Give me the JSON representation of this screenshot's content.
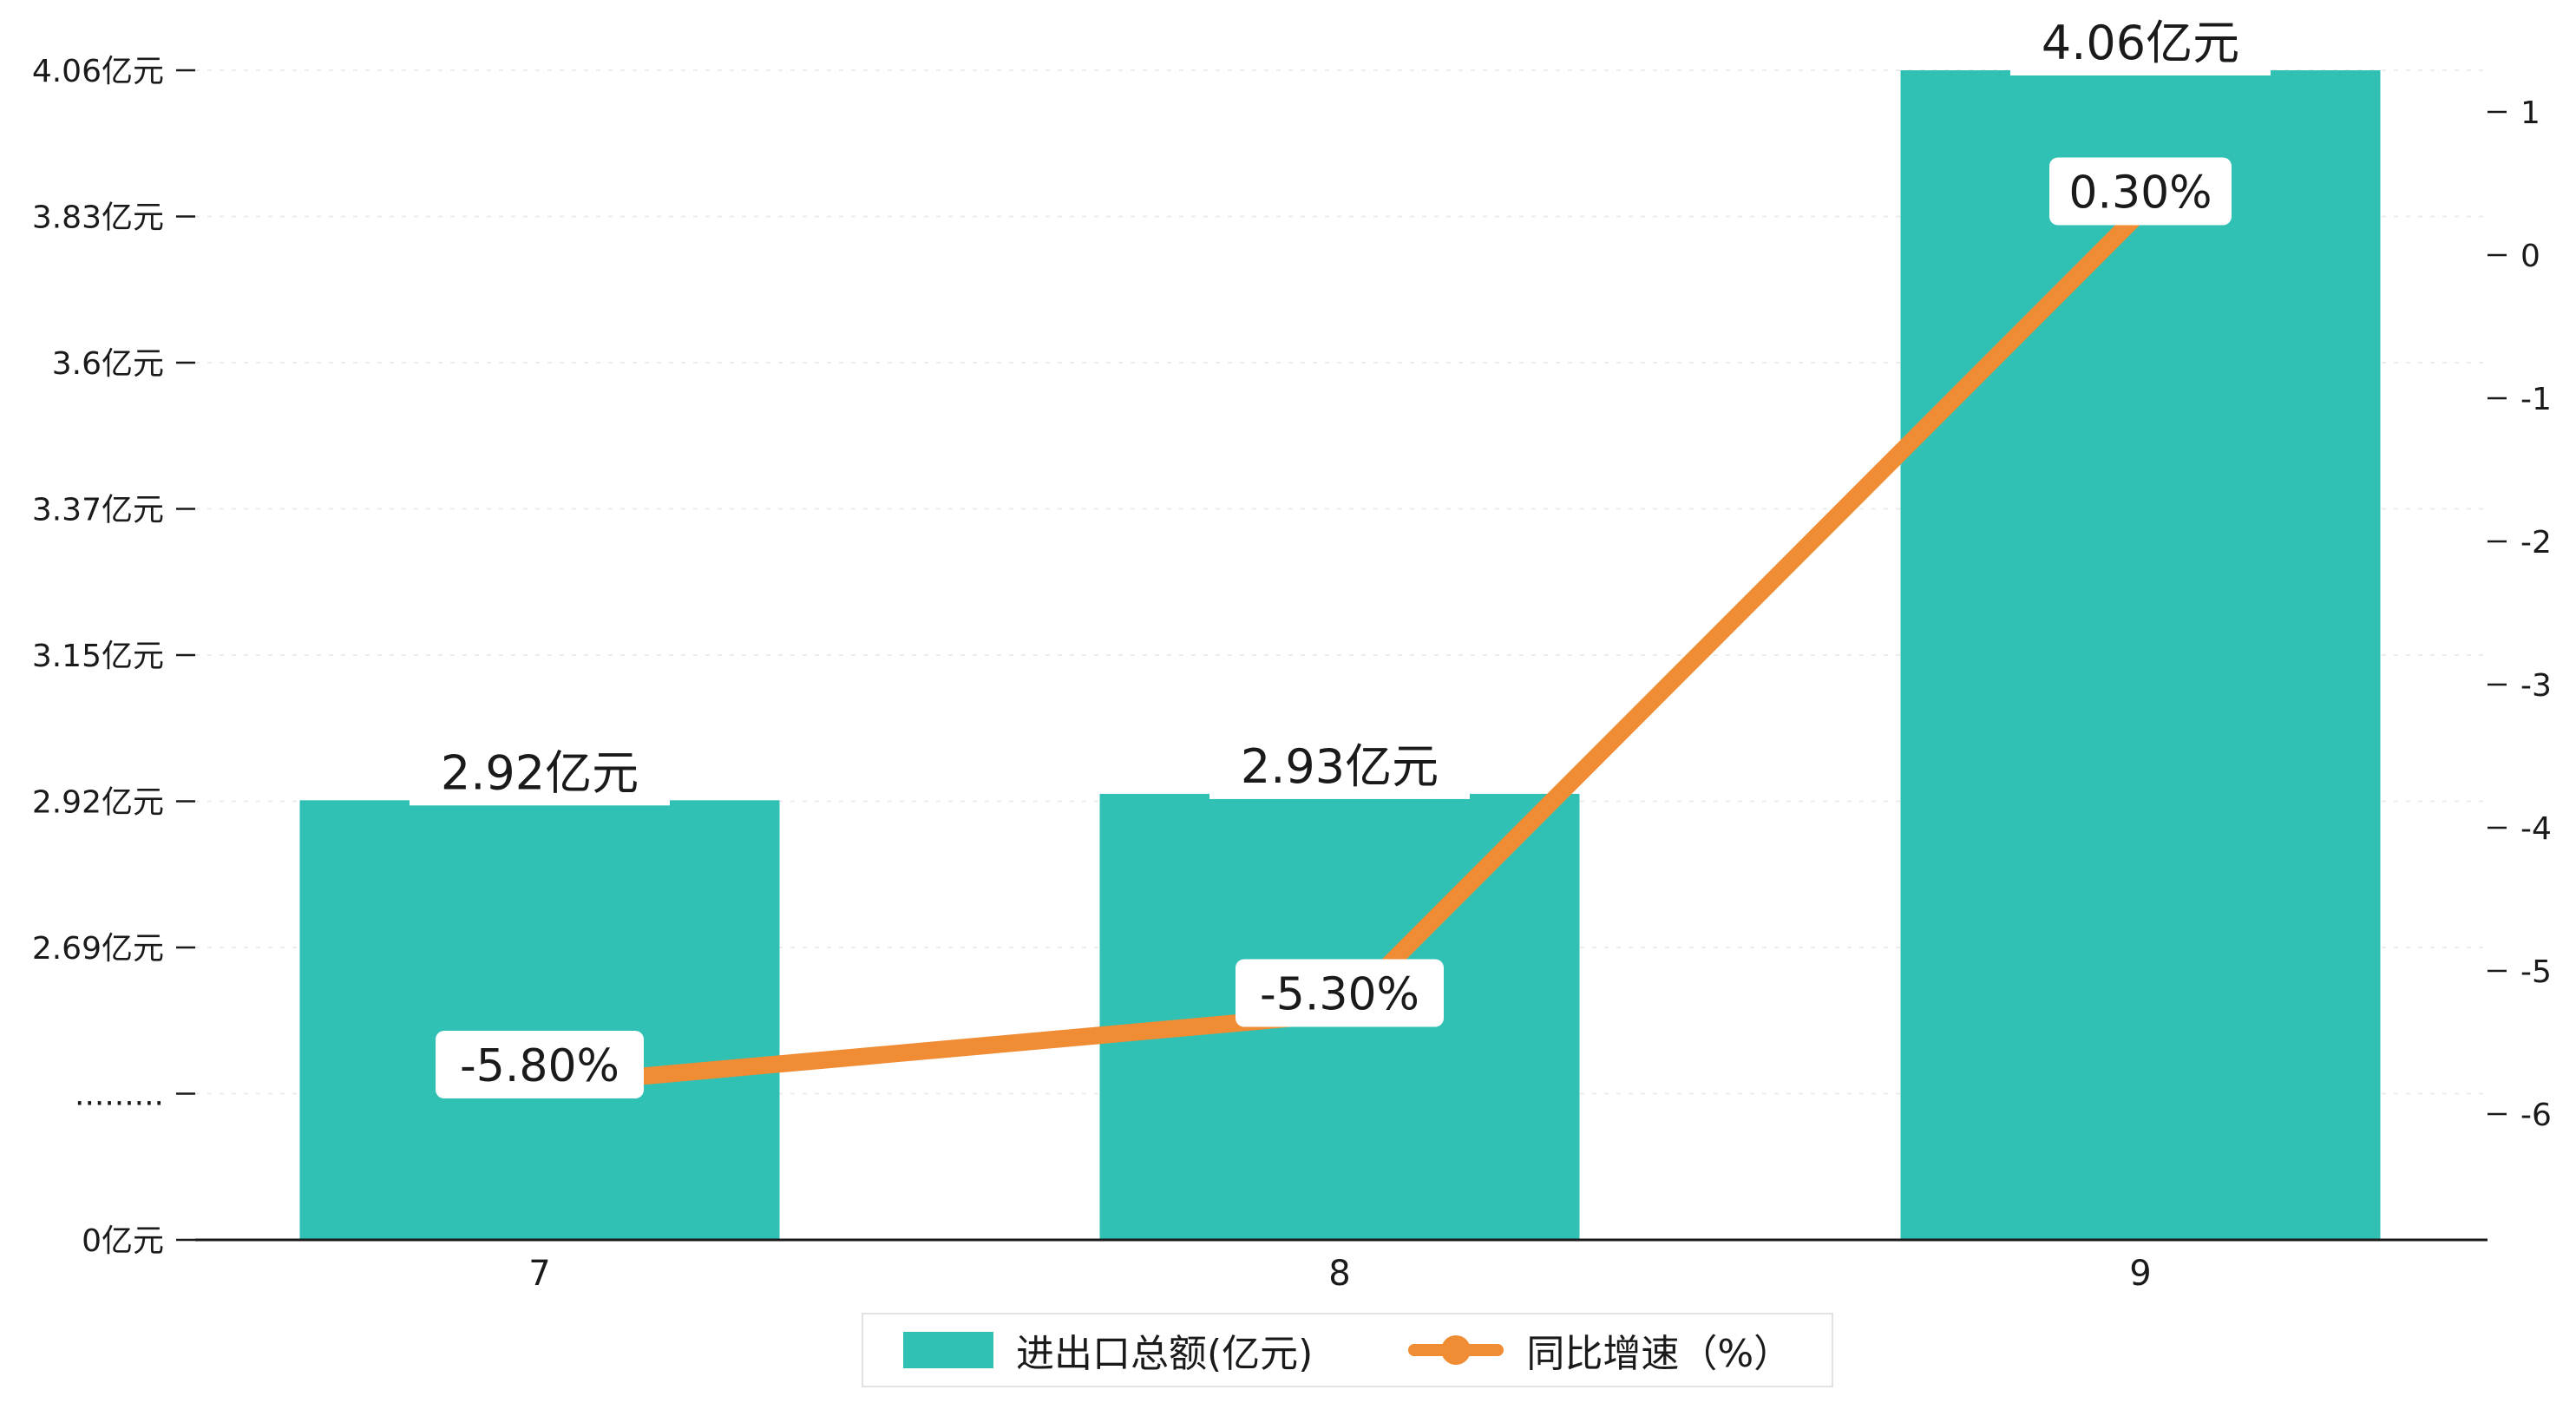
{
  "chart_data": {
    "type": "bar+line",
    "title": "",
    "categories": [
      "7",
      "8",
      "9"
    ],
    "series": [
      {
        "name": "进出口总额(亿元)",
        "type": "bar",
        "axis": "left",
        "color": "#30C1B4",
        "values": [
          2.92,
          2.93,
          4.06
        ],
        "labels": [
          "2.92亿元",
          "2.93亿元",
          "4.06亿元"
        ]
      },
      {
        "name": "同比增速（%）",
        "type": "line",
        "axis": "right",
        "color": "#F08C33",
        "values": [
          -5.8,
          -5.3,
          0.3
        ],
        "labels": [
          "-5.80%",
          "-5.30%",
          "0.30%"
        ]
      }
    ],
    "left_axis": {
      "unit": "亿元",
      "broken_axis": true,
      "tick_labels": [
        "0亿元",
        ".........",
        "2.69亿元",
        "2.92亿元",
        "3.15亿元",
        "3.37亿元",
        "3.6亿元",
        "3.83亿元",
        "4.06亿元"
      ],
      "tick_values": [
        0,
        null,
        2.69,
        2.92,
        3.15,
        3.37,
        3.6,
        3.83,
        4.06
      ]
    },
    "right_axis": {
      "tick_labels": [
        "1",
        "0",
        "-1",
        "-2",
        "-3",
        "-4",
        "-5",
        "-6"
      ],
      "range": [
        -6,
        1
      ]
    },
    "grid": true,
    "legend_position": "bottom"
  },
  "legend": {
    "items": [
      {
        "label": "进出口总额(亿元)",
        "marker": "bar",
        "color": "#30C1B4"
      },
      {
        "label": "同比增速（%）",
        "marker": "line-dot",
        "color": "#F08C33"
      }
    ]
  },
  "colors": {
    "bar": "#30C1B4",
    "line": "#F08C33",
    "background": "#FFFFFF",
    "axis": "#1A1A1A",
    "grid": "#ECECEC",
    "label_text": "#1A1A1A",
    "label_box": "#FFFFFF"
  }
}
